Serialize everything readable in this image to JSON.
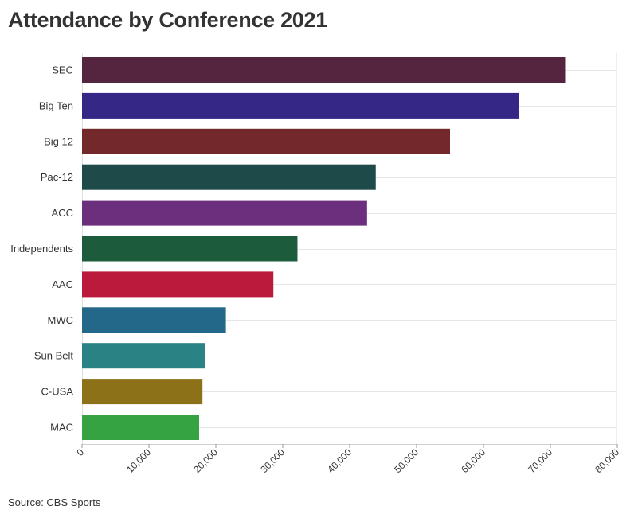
{
  "chart_data": {
    "type": "bar",
    "orientation": "horizontal",
    "title": "Attendance by Conference 2021",
    "source": "Source: CBS Sports",
    "xlabel": "",
    "ylabel": "",
    "xlim": [
      0,
      80000
    ],
    "x_ticks": [
      0,
      10000,
      20000,
      30000,
      40000,
      50000,
      60000,
      70000,
      80000
    ],
    "x_tick_labels": [
      "0",
      "10,000",
      "20,000",
      "30,000",
      "40,000",
      "50,000",
      "60,000",
      "70,000",
      "80,000"
    ],
    "grid": true,
    "categories": [
      "SEC",
      "Big Ten",
      "Big 12",
      "Pac-12",
      "ACC",
      "Independents",
      "AAC",
      "MWC",
      "Sun Belt",
      "C-USA",
      "MAC"
    ],
    "values": [
      72200,
      65300,
      55000,
      43900,
      42600,
      32200,
      28600,
      21500,
      18400,
      18000,
      17500
    ],
    "colors": [
      "#55243f",
      "#352786",
      "#73282b",
      "#1f4a4a",
      "#6b2f7d",
      "#1c5c3c",
      "#bc1a3c",
      "#236888",
      "#2a8284",
      "#8c7119",
      "#36a343"
    ]
  }
}
